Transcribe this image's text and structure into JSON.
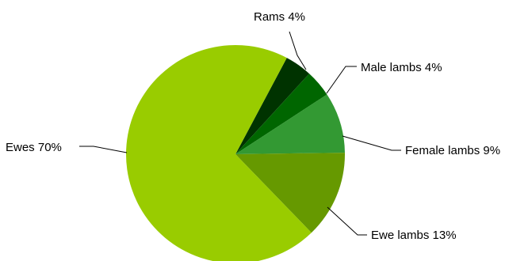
{
  "chart_data": {
    "type": "pie",
    "start_angle_deg": -62,
    "direction": "clockwise",
    "slices": [
      {
        "label": "Rams 4%",
        "value": 4,
        "color": "#003300"
      },
      {
        "label": "Male lambs 4%",
        "value": 4,
        "color": "#006600"
      },
      {
        "label": "Female lambs 9%",
        "value": 9,
        "color": "#339933"
      },
      {
        "label": "Ewe lambs 13%",
        "value": 13,
        "color": "#669900"
      },
      {
        "label": "Ewes 70%",
        "value": 70,
        "color": "#99cc00"
      }
    ]
  }
}
